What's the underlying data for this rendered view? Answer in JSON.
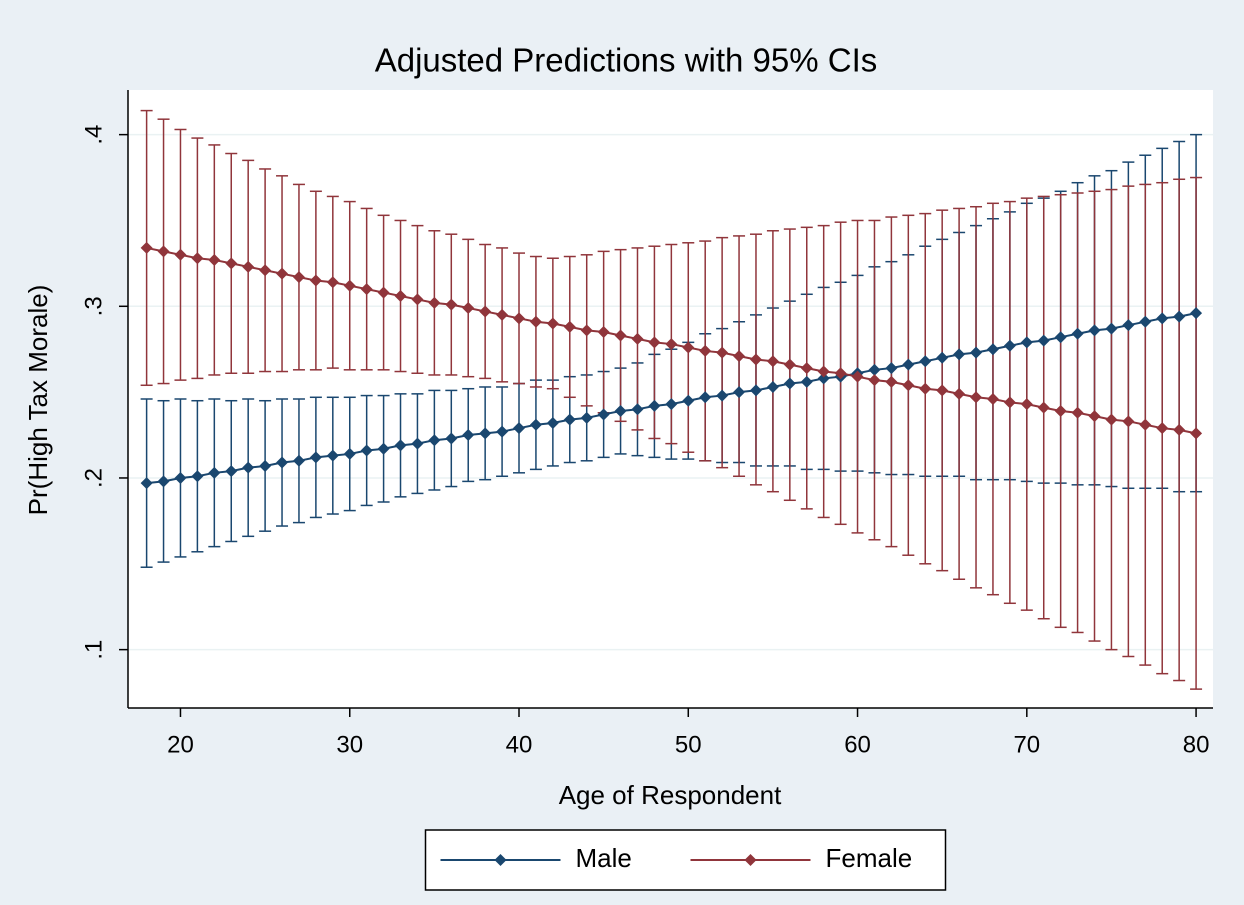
{
  "chart_data": {
    "type": "errorbar-line",
    "title": "Adjusted Predictions with 95% CIs",
    "x_label": "Age of Respondent",
    "y_label": "Pr(High Tax Morale)",
    "x": [
      18,
      19,
      20,
      21,
      22,
      23,
      24,
      25,
      26,
      27,
      28,
      29,
      30,
      31,
      32,
      33,
      34,
      35,
      36,
      37,
      38,
      39,
      40,
      41,
      42,
      43,
      44,
      45,
      46,
      47,
      48,
      49,
      50,
      51,
      52,
      53,
      54,
      55,
      56,
      57,
      58,
      59,
      60,
      61,
      62,
      63,
      64,
      65,
      66,
      67,
      68,
      69,
      70,
      71,
      72,
      73,
      74,
      75,
      76,
      77,
      78,
      79,
      80
    ],
    "series": [
      {
        "name": "Male",
        "color": "#1a476f",
        "values": [
          0.197,
          0.198,
          0.2,
          0.201,
          0.203,
          0.204,
          0.206,
          0.207,
          0.209,
          0.21,
          0.212,
          0.213,
          0.214,
          0.216,
          0.217,
          0.219,
          0.22,
          0.222,
          0.223,
          0.225,
          0.226,
          0.227,
          0.229,
          0.231,
          0.232,
          0.234,
          0.235,
          0.237,
          0.239,
          0.24,
          0.242,
          0.243,
          0.245,
          0.247,
          0.248,
          0.25,
          0.251,
          0.253,
          0.255,
          0.256,
          0.258,
          0.259,
          0.261,
          0.263,
          0.264,
          0.266,
          0.268,
          0.27,
          0.272,
          0.273,
          0.275,
          0.277,
          0.279,
          0.28,
          0.282,
          0.284,
          0.286,
          0.287,
          0.289,
          0.291,
          0.293,
          0.294,
          0.296
        ],
        "lower": [
          0.148,
          0.151,
          0.154,
          0.157,
          0.16,
          0.163,
          0.166,
          0.169,
          0.172,
          0.174,
          0.177,
          0.179,
          0.181,
          0.184,
          0.186,
          0.189,
          0.191,
          0.193,
          0.195,
          0.198,
          0.199,
          0.201,
          0.203,
          0.205,
          0.207,
          0.209,
          0.21,
          0.212,
          0.214,
          0.213,
          0.212,
          0.211,
          0.211,
          0.21,
          0.209,
          0.209,
          0.207,
          0.207,
          0.207,
          0.205,
          0.205,
          0.204,
          0.204,
          0.203,
          0.202,
          0.202,
          0.201,
          0.201,
          0.201,
          0.199,
          0.199,
          0.199,
          0.198,
          0.197,
          0.197,
          0.196,
          0.196,
          0.195,
          0.194,
          0.194,
          0.194,
          0.192,
          0.192
        ],
        "upper": [
          0.246,
          0.245,
          0.246,
          0.245,
          0.246,
          0.245,
          0.246,
          0.245,
          0.246,
          0.246,
          0.247,
          0.247,
          0.247,
          0.248,
          0.248,
          0.249,
          0.249,
          0.251,
          0.251,
          0.252,
          0.253,
          0.253,
          0.255,
          0.257,
          0.257,
          0.259,
          0.26,
          0.262,
          0.264,
          0.267,
          0.272,
          0.275,
          0.279,
          0.284,
          0.287,
          0.291,
          0.295,
          0.299,
          0.303,
          0.307,
          0.311,
          0.314,
          0.318,
          0.323,
          0.326,
          0.33,
          0.335,
          0.339,
          0.343,
          0.347,
          0.351,
          0.355,
          0.36,
          0.363,
          0.367,
          0.372,
          0.376,
          0.379,
          0.384,
          0.388,
          0.392,
          0.396,
          0.4
        ]
      },
      {
        "name": "Female",
        "color": "#90353b",
        "values": [
          0.334,
          0.332,
          0.33,
          0.328,
          0.327,
          0.325,
          0.323,
          0.321,
          0.319,
          0.317,
          0.315,
          0.314,
          0.312,
          0.31,
          0.308,
          0.306,
          0.304,
          0.302,
          0.301,
          0.299,
          0.297,
          0.295,
          0.293,
          0.291,
          0.29,
          0.288,
          0.286,
          0.285,
          0.283,
          0.281,
          0.279,
          0.278,
          0.276,
          0.274,
          0.273,
          0.271,
          0.269,
          0.268,
          0.266,
          0.264,
          0.262,
          0.261,
          0.259,
          0.257,
          0.256,
          0.254,
          0.252,
          0.251,
          0.249,
          0.247,
          0.246,
          0.244,
          0.243,
          0.241,
          0.239,
          0.238,
          0.236,
          0.234,
          0.233,
          0.231,
          0.229,
          0.228,
          0.226
        ],
        "lower": [
          0.254,
          0.255,
          0.257,
          0.258,
          0.26,
          0.261,
          0.261,
          0.262,
          0.262,
          0.263,
          0.263,
          0.264,
          0.263,
          0.263,
          0.263,
          0.262,
          0.261,
          0.26,
          0.26,
          0.259,
          0.258,
          0.256,
          0.255,
          0.253,
          0.252,
          0.247,
          0.242,
          0.238,
          0.233,
          0.228,
          0.223,
          0.22,
          0.215,
          0.21,
          0.206,
          0.201,
          0.196,
          0.192,
          0.187,
          0.182,
          0.177,
          0.173,
          0.168,
          0.164,
          0.16,
          0.155,
          0.15,
          0.146,
          0.141,
          0.136,
          0.132,
          0.127,
          0.123,
          0.118,
          0.113,
          0.11,
          0.105,
          0.1,
          0.096,
          0.091,
          0.086,
          0.082,
          0.077
        ],
        "upper": [
          0.414,
          0.409,
          0.403,
          0.398,
          0.394,
          0.389,
          0.385,
          0.38,
          0.376,
          0.371,
          0.367,
          0.364,
          0.361,
          0.357,
          0.353,
          0.35,
          0.347,
          0.344,
          0.342,
          0.339,
          0.336,
          0.334,
          0.331,
          0.329,
          0.328,
          0.329,
          0.33,
          0.332,
          0.333,
          0.334,
          0.335,
          0.336,
          0.337,
          0.338,
          0.34,
          0.341,
          0.342,
          0.344,
          0.345,
          0.346,
          0.347,
          0.349,
          0.35,
          0.35,
          0.352,
          0.353,
          0.354,
          0.356,
          0.357,
          0.358,
          0.36,
          0.361,
          0.363,
          0.364,
          0.365,
          0.366,
          0.367,
          0.368,
          0.37,
          0.371,
          0.372,
          0.374,
          0.375
        ]
      }
    ],
    "xlim": [
      16.9,
      81
    ],
    "xticks": [
      20,
      30,
      40,
      50,
      60,
      70,
      80
    ],
    "ylim": [
      0.066,
      0.426
    ],
    "yticks": [
      {
        "value": 0.1,
        "label": ".1"
      },
      {
        "value": 0.2,
        "label": ".2"
      },
      {
        "value": 0.3,
        "label": ".3"
      },
      {
        "value": 0.4,
        "label": ".4"
      }
    ],
    "grid": true,
    "legend": "bottom"
  }
}
